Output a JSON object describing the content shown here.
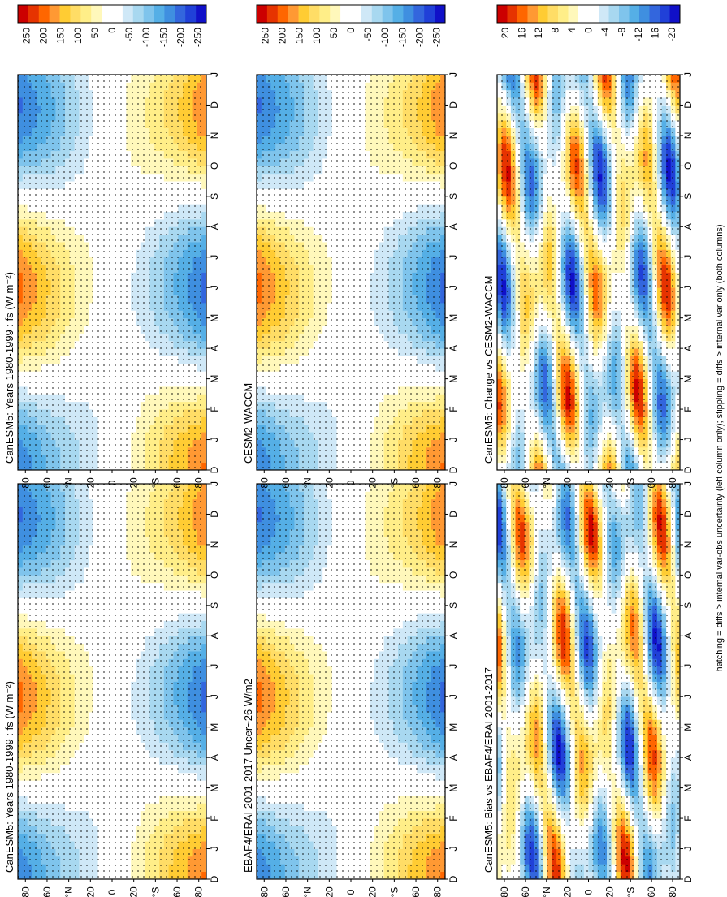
{
  "footer": "hatching = diffs > internal var-obs uncertainty (left column only); stippling = diffs > internal var only (both columns)",
  "palettes": {
    "main": [
      "#cc0000",
      "#e63300",
      "#ff6600",
      "#ff9933",
      "#ffcc33",
      "#ffdd66",
      "#ffee88",
      "#fff8bb",
      "#ffffff",
      "#ffffff",
      "#cfe8f7",
      "#a8d8f0",
      "#7fc4ec",
      "#55afe6",
      "#3f8fe0",
      "#3366dd",
      "#2040d8",
      "#1010c8"
    ],
    "diff": [
      "#cc0000",
      "#e63300",
      "#ff6600",
      "#ff9933",
      "#ffcc33",
      "#ffdd66",
      "#ffee88",
      "#fff8bb",
      "#ffffff",
      "#ffffff",
      "#cfe8f7",
      "#a8d8f0",
      "#7fc4ec",
      "#55afe6",
      "#3f8fe0",
      "#3366dd",
      "#2040d8",
      "#1010c8"
    ]
  },
  "chart_data": [
    {
      "id": "p1",
      "type": "heatmap",
      "title": "CanESM5: Years 1980-1999 : fs (W m⁻²)",
      "months": [
        "D",
        "J",
        "F",
        "M",
        "A",
        "M",
        "J",
        "J",
        "A",
        "S",
        "O",
        "N",
        "D",
        "J"
      ],
      "lat_ticks": [
        "80",
        "60",
        "°N",
        "20",
        "0",
        "20",
        "°S",
        "60",
        "80"
      ],
      "colorbar": [
        "250",
        "200",
        "150",
        "100",
        "50",
        "0",
        "-50",
        "-100",
        "-150",
        "-200",
        "-250"
      ],
      "palette": "main",
      "stipple": true,
      "hatch": true
    },
    {
      "id": "p2",
      "type": "heatmap",
      "title": "CanESM5: Years 1980-1999 : fs (W m⁻²)",
      "months": [
        "D",
        "J",
        "F",
        "M",
        "A",
        "M",
        "J",
        "J",
        "A",
        "S",
        "O",
        "N",
        "D",
        "J"
      ],
      "lat_ticks": [
        "80",
        "60",
        "°N",
        "20",
        "0",
        "20",
        "°S",
        "60",
        "80"
      ],
      "colorbar": [
        "250",
        "200",
        "150",
        "100",
        "50",
        "0",
        "-50",
        "-100",
        "-150",
        "-200",
        "-250"
      ],
      "palette": "main",
      "stipple": true,
      "hatch": false
    },
    {
      "id": "p3",
      "type": "heatmap",
      "title": "EBAF4/ERAI 2001-2017 Uncer~26 W/m2",
      "months": [
        "D",
        "J",
        "F",
        "M",
        "A",
        "M",
        "J",
        "J",
        "A",
        "S",
        "O",
        "N",
        "D",
        "J"
      ],
      "lat_ticks": [
        "80",
        "60",
        "°N",
        "20",
        "0",
        "20",
        "°S",
        "60",
        "80"
      ],
      "colorbar": [
        "250",
        "200",
        "150",
        "100",
        "50",
        "0",
        "-50",
        "-100",
        "-150",
        "-200",
        "-250"
      ],
      "palette": "main",
      "stipple": true,
      "hatch": true
    },
    {
      "id": "p4",
      "type": "heatmap",
      "title": "CESM2-WACCM",
      "months": [
        "D",
        "J",
        "F",
        "M",
        "A",
        "M",
        "J",
        "J",
        "A",
        "S",
        "O",
        "N",
        "D",
        "J"
      ],
      "lat_ticks": [
        "80",
        "60",
        "°N",
        "20",
        "0",
        "20",
        "°S",
        "60",
        "80"
      ],
      "colorbar": [
        "250",
        "200",
        "150",
        "100",
        "50",
        "0",
        "-50",
        "-100",
        "-150",
        "-200",
        "-250"
      ],
      "palette": "main",
      "stipple": true,
      "hatch": false
    },
    {
      "id": "p5",
      "type": "heatmap",
      "title": "CanESM5: Bias vs EBAF4/ERAI 2001-2017",
      "months": [
        "D",
        "J",
        "F",
        "M",
        "A",
        "M",
        "J",
        "J",
        "A",
        "S",
        "O",
        "N",
        "D",
        "J"
      ],
      "lat_ticks": [
        "80",
        "60",
        "°N",
        "20",
        "0",
        "20",
        "°S",
        "60",
        "80"
      ],
      "colorbar": [
        "20",
        "16",
        "12",
        "8",
        "4",
        "0",
        "-4",
        "-8",
        "-12",
        "-16",
        "-20"
      ],
      "palette": "diff",
      "stipple": true,
      "hatch": true
    },
    {
      "id": "p6",
      "type": "heatmap",
      "title": "CanESM5: Change vs CESM2-WACCM",
      "months": [
        "D",
        "J",
        "F",
        "M",
        "A",
        "M",
        "J",
        "J",
        "A",
        "S",
        "O",
        "N",
        "D",
        "J"
      ],
      "lat_ticks": [
        "80",
        "60",
        "°N",
        "20",
        "0",
        "20",
        "°S",
        "60",
        "80"
      ],
      "colorbar": [
        "20",
        "16",
        "12",
        "8",
        "4",
        "0",
        "-4",
        "-8",
        "-12",
        "-16",
        "-20"
      ],
      "palette": "diff",
      "stipple": true,
      "hatch": false
    }
  ]
}
